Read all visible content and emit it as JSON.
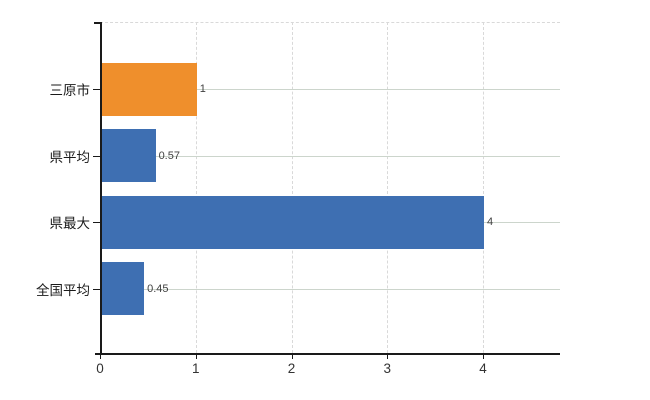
{
  "chart_data": {
    "type": "bar",
    "orientation": "horizontal",
    "title": "",
    "xlabel": "",
    "ylabel": "",
    "categories": [
      "三原市",
      "県平均",
      "県最大",
      "全国平均"
    ],
    "values": [
      1,
      0.57,
      4,
      0.45
    ],
    "value_labels": [
      "1",
      "0.57",
      "4",
      "0.45"
    ],
    "bar_colors": [
      "#EF8F2C",
      "#3E6FB2",
      "#3E6FB2",
      "#3E6FB2"
    ],
    "x_ticks": [
      {
        "label": "0",
        "value": 0
      },
      {
        "label": "1",
        "value": 1
      },
      {
        "label": "2",
        "value": 2
      },
      {
        "label": "3",
        "value": 3
      },
      {
        "label": "4",
        "value": 4
      }
    ],
    "xlim": [
      0,
      4.8
    ],
    "grid": {
      "vertical": true,
      "horizontal": true,
      "top_border_dashed": true
    },
    "legend": "none",
    "colors": {
      "background": "#ffffff",
      "axis": "#1a1a1a",
      "grid_vertical": "#d9d9d9",
      "grid_horizontal": "#ccd5cc",
      "category_label": "#1a1a1a",
      "tick_label": "#333333",
      "value_label": "#404040"
    }
  }
}
